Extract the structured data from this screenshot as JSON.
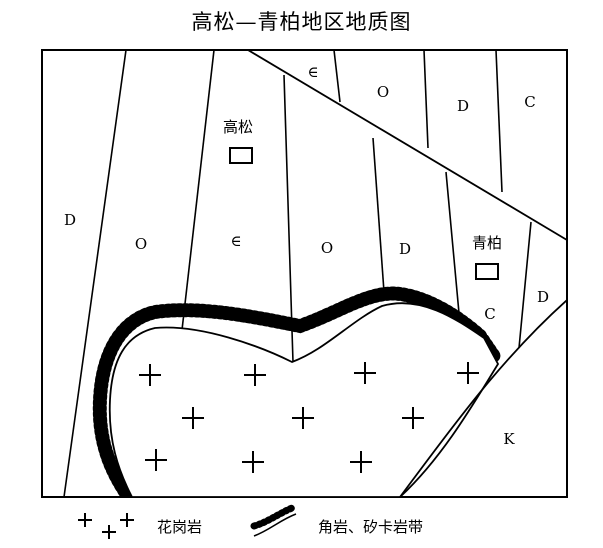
{
  "title": "高松—青柏地区地质图",
  "places": [
    {
      "name": "高松"
    },
    {
      "name": "青柏"
    }
  ],
  "units": {
    "D_west": "D",
    "O_1": "O",
    "Cambrian_1": "∈",
    "O_2": "O",
    "D_2": "D",
    "Cambrian_top": "∈",
    "O_top": "O",
    "D_top": "D",
    "C_top": "C",
    "C_mid": "C",
    "D_east": "D",
    "K": "K"
  },
  "legend": {
    "granite": "花岗岩",
    "skarn": "角岩、矽卡岩带"
  },
  "colors": {
    "line": "#000000",
    "background": "#ffffff"
  }
}
